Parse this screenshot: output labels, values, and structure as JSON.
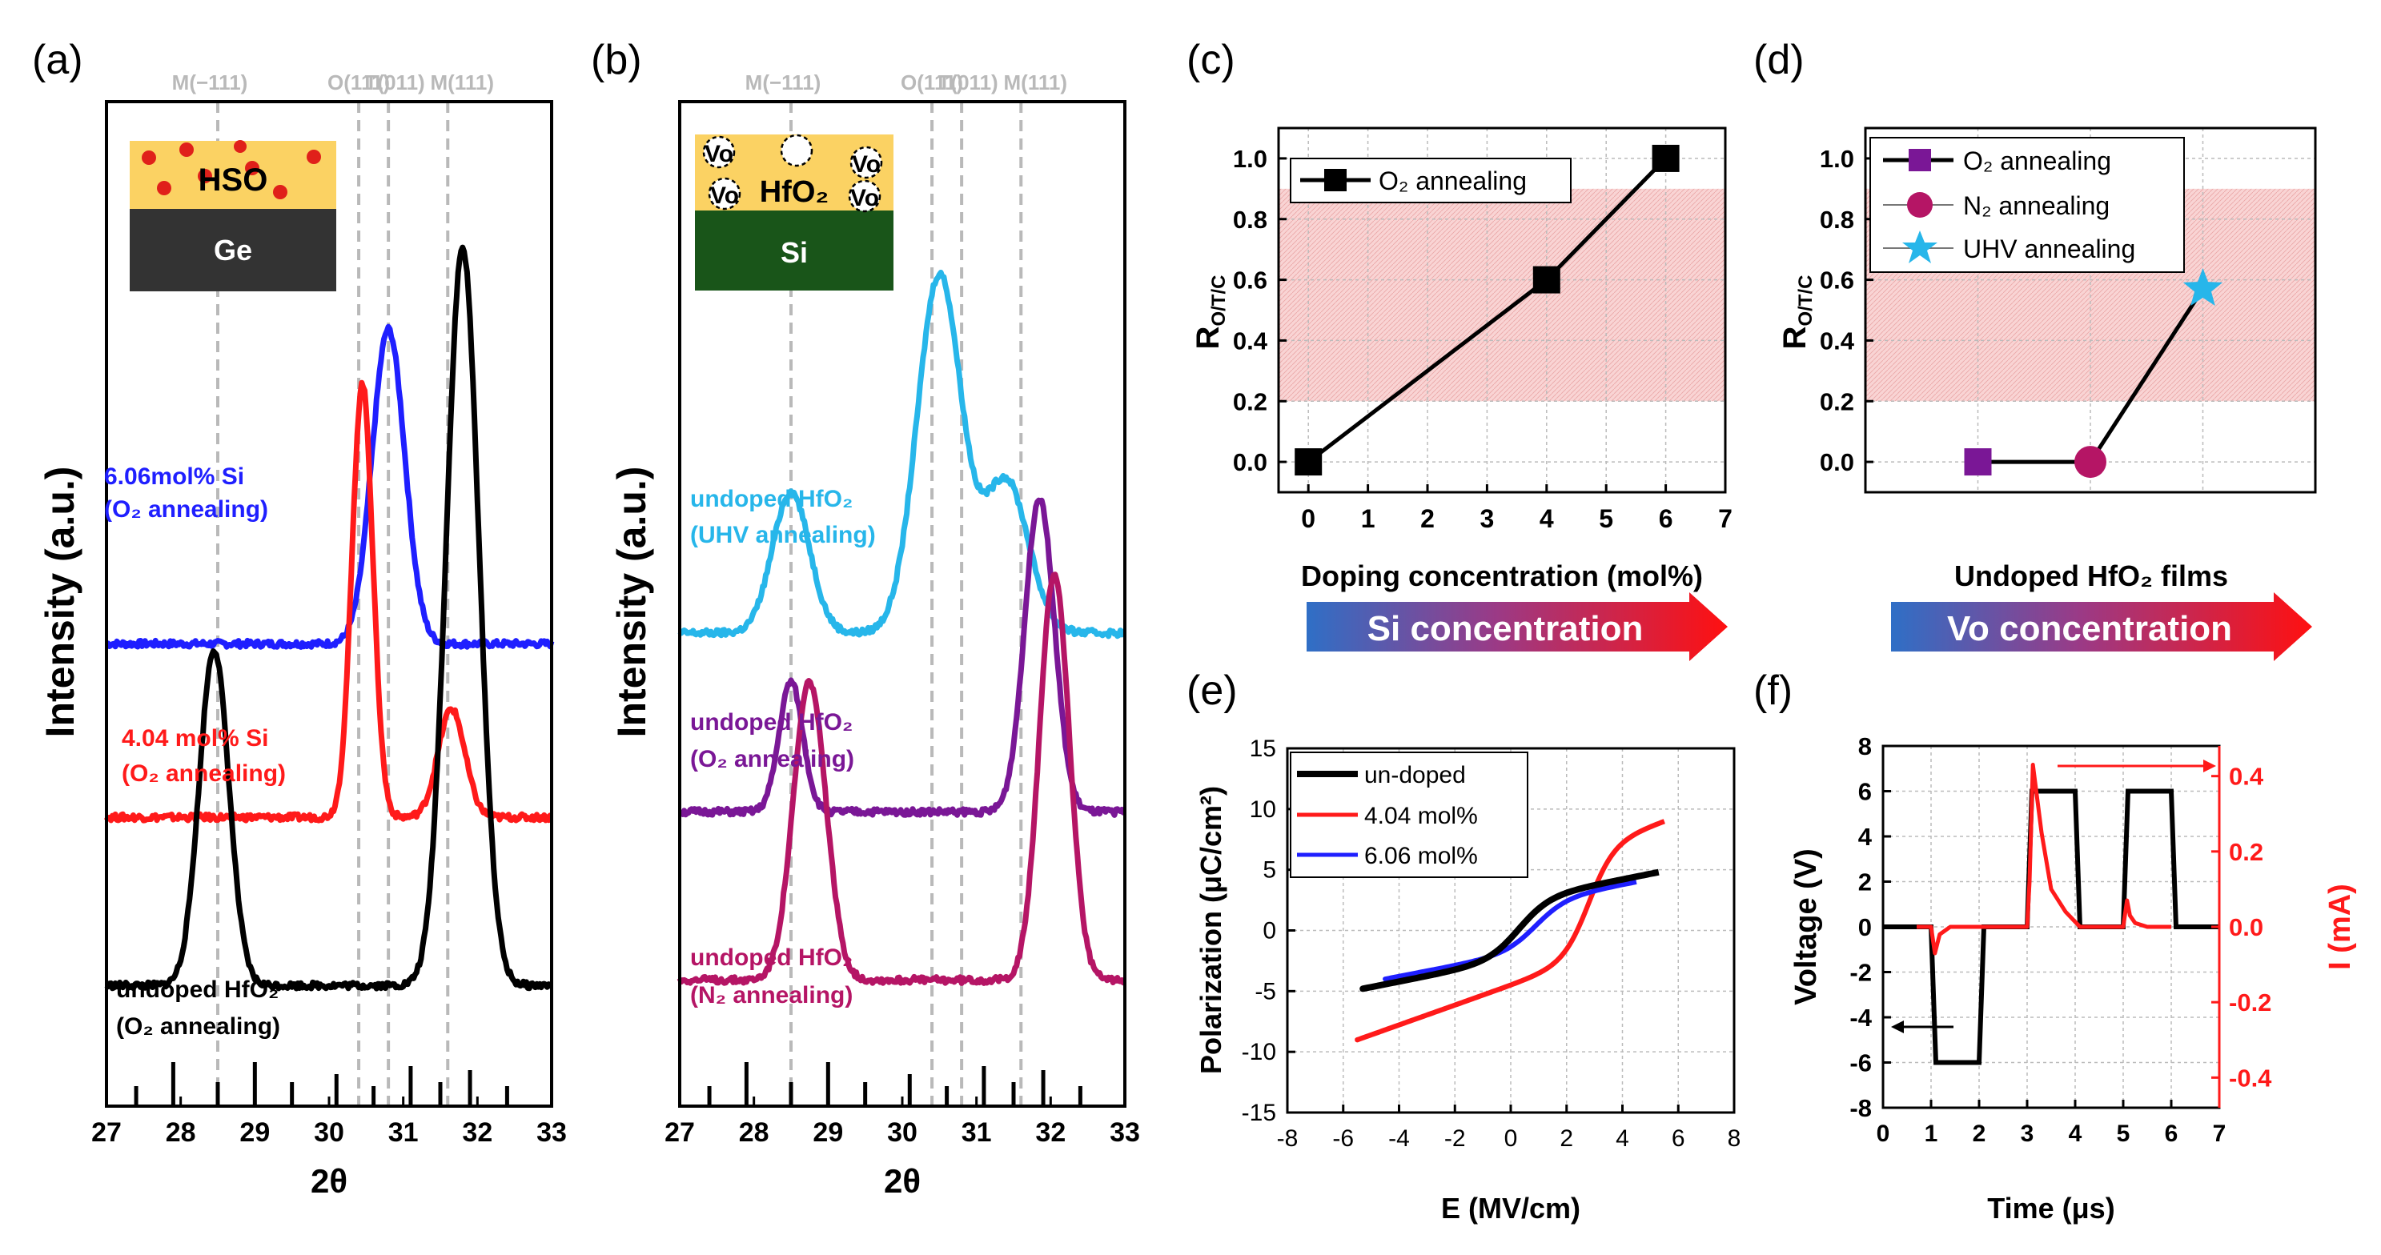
{
  "figure": {
    "panel_labels": [
      "(a)",
      "(b)",
      "(c)",
      "(d)",
      "(e)",
      "(f)"
    ],
    "colors": {
      "blue": "#1f1fff",
      "red": "#ff1a1a",
      "black": "#000000",
      "cyan": "#27b6ea",
      "purple": "#7a1796",
      "magenta": "#b51565",
      "pink_band": "#f7c9c9",
      "gray_ref": "#b9b9b9",
      "ge": "#333333",
      "si_sub": "#195519",
      "film": "#fbd263",
      "dot": "#e0201a"
    }
  },
  "chart_data": [
    {
      "id": "a",
      "type": "line",
      "title": "",
      "xlabel": "2θ",
      "ylabel": "Intensity (a.u.)",
      "xlim": [
        27,
        33
      ],
      "x_ticks": [
        "27",
        "28",
        "29",
        "30",
        "31",
        "32",
        "33"
      ],
      "ref_lines": [
        {
          "label": "M(−111)",
          "x": 28.5
        },
        {
          "label": "O(111)",
          "x": 30.4
        },
        {
          "label": "T(011)",
          "x": 30.8
        },
        {
          "label": "M(111)",
          "x": 31.6
        }
      ],
      "stick_pattern": [
        [
          27.4,
          0.25
        ],
        [
          27.9,
          0.55
        ],
        [
          28.5,
          0.3
        ],
        [
          29.0,
          0.55
        ],
        [
          29.5,
          0.3
        ],
        [
          30.1,
          0.4
        ],
        [
          30.6,
          0.25
        ],
        [
          31.1,
          0.5
        ],
        [
          31.5,
          0.3
        ],
        [
          31.9,
          0.45
        ],
        [
          32.4,
          0.25
        ]
      ],
      "inset": {
        "film": "HSO",
        "substrate": "Ge"
      },
      "series": [
        {
          "name": "6.06mol% Si (O₂ annealing)",
          "label_lines": [
            "6.06mol% Si",
            "(O₂ annealing)"
          ],
          "color": "#1f1fff",
          "offset": 0.68,
          "peaks": [
            [
              30.8,
              0.58,
              0.22
            ]
          ],
          "base": 0.0
        },
        {
          "name": "4.04 mol% Si (O₂ annealing)",
          "label_lines": [
            "4.04 mol% Si",
            "(O₂ annealing)"
          ],
          "color": "#ff1a1a",
          "offset": 0.36,
          "peaks": [
            [
              30.45,
              0.8,
              0.14
            ],
            [
              31.65,
              0.2,
              0.18
            ]
          ],
          "base": 0.0
        },
        {
          "name": "undoped HfO₂ (O₂ annealing)",
          "label_lines": [
            "undoped HfO₂",
            "(O₂ annealing)"
          ],
          "color": "#000000",
          "offset": 0.05,
          "peaks": [
            [
              28.45,
              0.62,
              0.2
            ],
            [
              31.8,
              1.36,
              0.22
            ]
          ],
          "base": 0.0
        }
      ]
    },
    {
      "id": "b",
      "type": "line",
      "title": "",
      "xlabel": "2θ",
      "ylabel": "Intensity (a.u.)",
      "xlim": [
        27,
        33
      ],
      "x_ticks": [
        "27",
        "28",
        "29",
        "30",
        "31",
        "32",
        "33"
      ],
      "ref_lines": [
        {
          "label": "M(−111)",
          "x": 28.5
        },
        {
          "label": "O(111)",
          "x": 30.4
        },
        {
          "label": "T(011)",
          "x": 30.8
        },
        {
          "label": "M(111)",
          "x": 31.6
        }
      ],
      "stick_pattern": [
        [
          27.4,
          0.25
        ],
        [
          27.9,
          0.55
        ],
        [
          28.5,
          0.3
        ],
        [
          29.0,
          0.55
        ],
        [
          29.5,
          0.3
        ],
        [
          30.1,
          0.4
        ],
        [
          30.6,
          0.25
        ],
        [
          31.1,
          0.5
        ],
        [
          31.5,
          0.3
        ],
        [
          31.9,
          0.45
        ],
        [
          32.4,
          0.25
        ]
      ],
      "inset": {
        "film": "HfO₂",
        "substrate": "Si",
        "defect": "Vo"
      },
      "series": [
        {
          "name": "undoped HfO₂ (UHV annealing)",
          "label_lines": [
            "undoped HfO₂",
            "(UHV annealing)"
          ],
          "color": "#27b6ea",
          "offset": 0.7,
          "peaks": [
            [
              28.5,
              0.26,
              0.25
            ],
            [
              30.5,
              0.66,
              0.3
            ],
            [
              31.4,
              0.28,
              0.3
            ]
          ],
          "base": 0.0
        },
        {
          "name": "undoped HfO₂ (O₂ annealing)",
          "label_lines": [
            "undoped HfO₂",
            "(O₂ annealing)"
          ],
          "color": "#7a1796",
          "offset": 0.37,
          "peaks": [
            [
              28.5,
              0.24,
              0.16
            ],
            [
              31.85,
              0.58,
              0.2
            ]
          ],
          "base": 0.0
        },
        {
          "name": "undoped HfO₂ (N₂ annealing)",
          "label_lines": [
            "undoped HfO₂",
            "(N₂ annealing)"
          ],
          "color": "#b51565",
          "offset": 0.06,
          "peaks": [
            [
              28.75,
              0.55,
              0.22
            ],
            [
              32.05,
              0.75,
              0.2
            ]
          ],
          "base": 0.0
        }
      ]
    },
    {
      "id": "c",
      "type": "line",
      "title": "",
      "xlabel": "Doping concentration (mol%)",
      "ylabel": "R_O/T/C",
      "ylabel_main": "R",
      "ylabel_sub": "O/T/C",
      "xlim": [
        -0.5,
        7
      ],
      "ylim": [
        -0.1,
        1.1
      ],
      "x_ticks": [
        "0",
        "1",
        "2",
        "3",
        "4",
        "5",
        "6",
        "7"
      ],
      "y_ticks": [
        "0.0",
        "0.2",
        "0.4",
        "0.6",
        "0.8",
        "1.0"
      ],
      "band": [
        0.2,
        0.9
      ],
      "legend": [
        "O₂ annealing"
      ],
      "series": [
        {
          "name": "O₂ annealing",
          "x": [
            0,
            4,
            6
          ],
          "y": [
            0,
            0.6,
            1.0
          ],
          "color": "#000000",
          "marker": "square"
        }
      ],
      "arrow_label": "Si concentration"
    },
    {
      "id": "d",
      "type": "line",
      "title": "",
      "xlabel": "Undoped HfO₂ films",
      "ylabel": "R_O/T/C",
      "ylabel_main": "R",
      "ylabel_sub": "O/T/C",
      "xlim": [
        0,
        4
      ],
      "ylim": [
        -0.1,
        1.1
      ],
      "y_ticks": [
        "0.0",
        "0.2",
        "0.4",
        "0.6",
        "0.8",
        "1.0"
      ],
      "band": [
        0.2,
        0.9
      ],
      "legend": [
        "O₂ annealing",
        "N₂ annealing",
        "UHV annealing"
      ],
      "series": [
        {
          "name": "O₂ annealing",
          "x": [
            1
          ],
          "y": [
            0
          ],
          "color": "#7a1796",
          "marker": "square"
        },
        {
          "name": "N₂ annealing",
          "x": [
            2
          ],
          "y": [
            0
          ],
          "color": "#b51565",
          "marker": "circle"
        },
        {
          "name": "UHV annealing",
          "x": [
            3
          ],
          "y": [
            0.57
          ],
          "color": "#27b6ea",
          "marker": "star"
        }
      ],
      "connector": {
        "x": [
          1,
          2,
          3
        ],
        "y": [
          0,
          0,
          0.57
        ]
      },
      "arrow_label": "Vo concentration"
    },
    {
      "id": "e",
      "type": "line",
      "title": "",
      "xlabel": "E (MV/cm)",
      "ylabel": "Polarization (μC/cm²)",
      "xlim": [
        -8,
        8
      ],
      "ylim": [
        -15,
        15
      ],
      "x_ticks": [
        "-8",
        "-6",
        "-4",
        "-2",
        "0",
        "2",
        "4",
        "6",
        "8"
      ],
      "y_ticks": [
        "-15",
        "-10",
        "-5",
        "0",
        "5",
        "10",
        "15"
      ],
      "legend": [
        "un-doped",
        "4.04 mol%",
        "6.06 mol%"
      ],
      "series": [
        {
          "name": "un-doped",
          "color": "#000000",
          "emax": 5.3,
          "pmax": 4.8,
          "pr": 0.3,
          "ec": 0.3,
          "k": 0.9
        },
        {
          "name": "4.04 mol%",
          "color": "#ff1a1a",
          "emax": 5.5,
          "pmax": 9.0,
          "pr": 5.5,
          "ec": 2.8,
          "k": 1.1
        },
        {
          "name": "6.06 mol%",
          "color": "#1f1fff",
          "emax": 4.5,
          "pmax": 4.0,
          "pr": 1.2,
          "ec": 0.9,
          "k": 0.9
        }
      ]
    },
    {
      "id": "f",
      "type": "line",
      "title": "",
      "xlabel": "Time (μs)",
      "ylabel": "Voltage (V)",
      "y2label": "I (mA)",
      "xlim": [
        0,
        7
      ],
      "ylim": [
        -8,
        8
      ],
      "y2lim": [
        -0.48,
        0.48
      ],
      "x_ticks": [
        "0",
        "1",
        "2",
        "3",
        "4",
        "5",
        "6",
        "7"
      ],
      "y_ticks": [
        "-8",
        "-6",
        "-4",
        "-2",
        "0",
        "2",
        "4",
        "6",
        "8"
      ],
      "y2_ticks": [
        "-0.4",
        "-0.2",
        "0.0",
        "0.2",
        "0.4"
      ],
      "series": [
        {
          "name": "Voltage",
          "color": "#000000",
          "x": [
            0,
            1.0,
            1.1,
            2.0,
            2.1,
            3.0,
            3.1,
            4.0,
            4.1,
            5.0,
            5.1,
            6.0,
            6.1,
            7.0
          ],
          "y": [
            0,
            0,
            -6,
            -6,
            0,
            0,
            6,
            6,
            0,
            0,
            6,
            6,
            0,
            0
          ]
        },
        {
          "name": "Current",
          "color": "#ff1a1a",
          "x": [
            0.7,
            1.0,
            1.08,
            1.18,
            1.4,
            3.0,
            3.05,
            3.12,
            3.3,
            3.5,
            3.8,
            4.1,
            5.0,
            5.08,
            5.14,
            5.25,
            5.5,
            6.0
          ],
          "y": [
            0,
            0,
            -0.07,
            -0.02,
            0,
            0,
            0.12,
            0.43,
            0.25,
            0.1,
            0.04,
            0,
            0,
            0.07,
            0.03,
            0.01,
            0,
            0
          ]
        }
      ]
    }
  ]
}
